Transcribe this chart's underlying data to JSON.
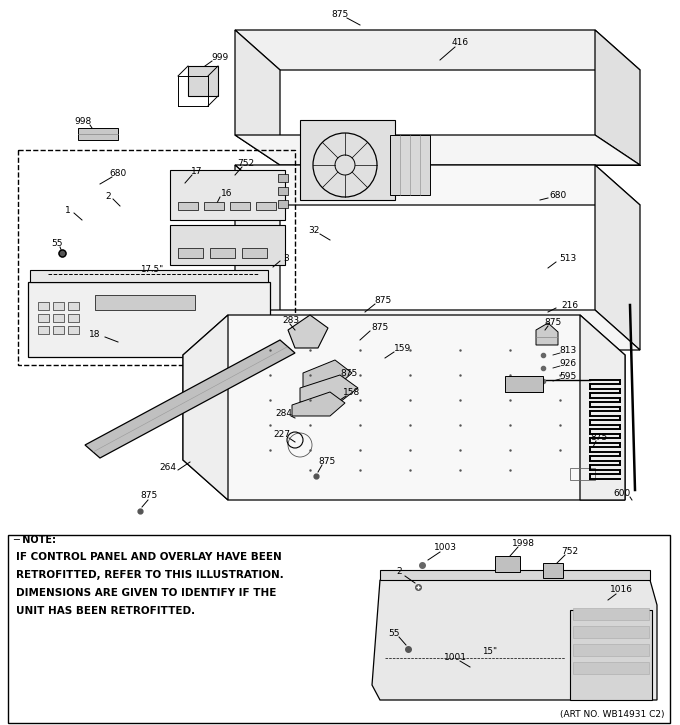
{
  "art_no": "(ART NO. WB14931 C2)",
  "bg_color": "#ffffff",
  "lc": "#000000",
  "note_text_lines": [
    "IF CONTROL PANEL AND OVERLAY HAVE BEEN",
    "RETROFITTED, REFER TO THIS ILLUSTRATION.",
    "DIMENSIONS ARE GIVEN TO IDENTIFY IF THE",
    "UNIT HAS BEEN RETROFITTED."
  ]
}
